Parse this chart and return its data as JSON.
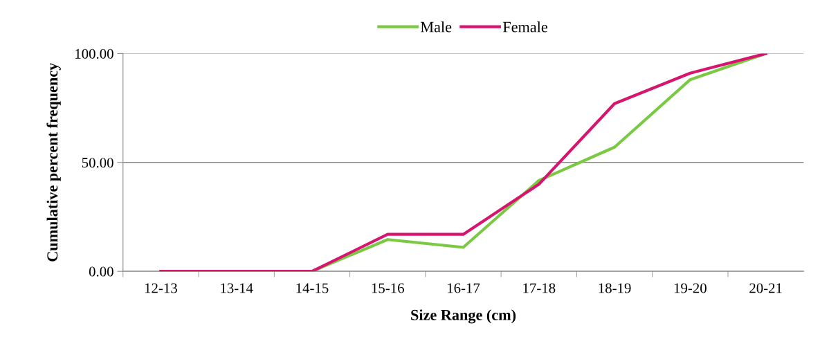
{
  "chart_data": {
    "type": "line",
    "xlabel": "Size Range (cm)",
    "ylabel": "Cumulative percent frequency",
    "categories": [
      "12-13",
      "13-14",
      "14-15",
      "15-16",
      "16-17",
      "17-18",
      "18-19",
      "19-20",
      "20-21"
    ],
    "series": [
      {
        "name": "Male",
        "color": "#7ac943",
        "values": [
          0,
          0,
          0,
          14.6,
          11,
          41.7,
          57,
          88,
          100
        ]
      },
      {
        "name": "Female",
        "color": "#d6156e",
        "values": [
          0,
          0,
          0,
          17,
          17,
          40,
          77,
          91,
          100
        ]
      }
    ],
    "ylim": [
      0,
      100
    ],
    "yticks": [
      {
        "value": 0,
        "label": "0.00"
      },
      {
        "value": 50,
        "label": "50.00"
      },
      {
        "value": 100,
        "label": "100.00"
      }
    ],
    "grid": "y",
    "legend": "top",
    "marker": "none",
    "line_style": "solid"
  }
}
